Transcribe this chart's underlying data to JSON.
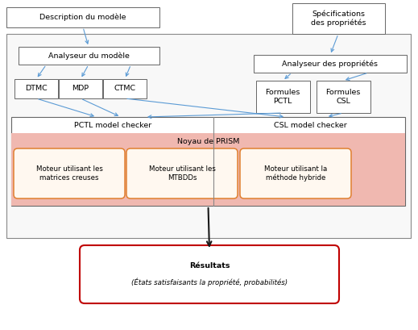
{
  "fig_width": 5.19,
  "fig_height": 4.09,
  "dpi": 100,
  "bg_color": "#ffffff",
  "box_edge_color": "#666666",
  "blue_arrow_color": "#5b9bd5",
  "black_arrow_color": "#1a1a1a",
  "pink_fill": "#f0b8b0",
  "orange_edge": "#e08030",
  "orange_fill": "#fff8f0",
  "red_edge": "#c00000",
  "red_fill": "#ffffff",
  "font_size": 6.8,
  "font_size_small": 6.2,
  "title": "Description du modèle",
  "spec_title": "Spécifications\ndes propriétés",
  "analyseur_model": "Analyseur du modèle",
  "analyseur_prop": "Analyseur des propriétés",
  "dtmc": "DTMC",
  "mdp": "MDP",
  "ctmc": "CTMC",
  "formules_pctl": "Formules\nPCTL",
  "formules_csl": "Formules\nCSL",
  "pctl_checker": "PCTL model checker",
  "csl_checker": "CSL model checker",
  "noyau": "Noyau de PRISM",
  "moteur1": "Moteur utilisant les\nmatrices creuses",
  "moteur2": "Moteur utilisant les\nMTBDDs",
  "moteur3": "Moteur utilisant la\nméthode hybride",
  "resultats": "Résultats",
  "etats": "(États satisfaisants la propriété, probabilités)"
}
